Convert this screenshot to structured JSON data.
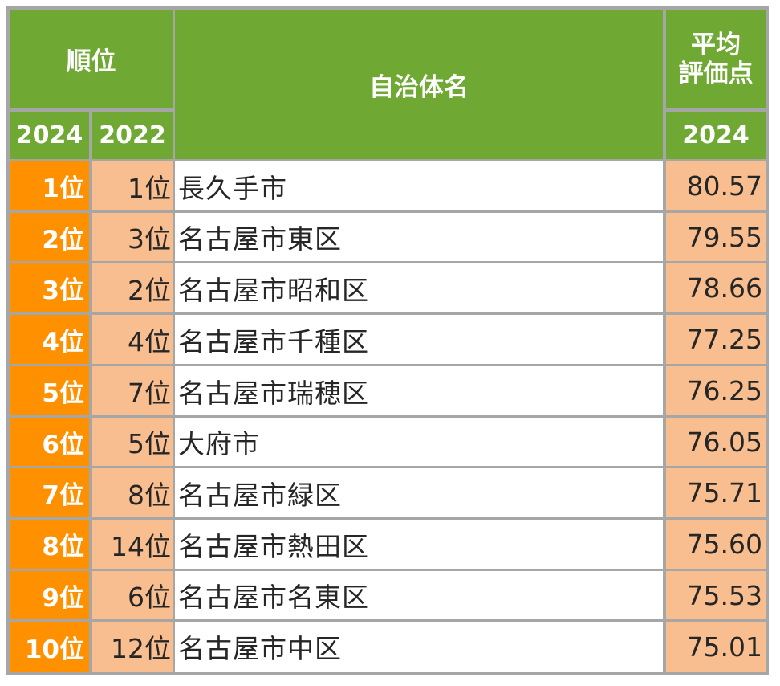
{
  "header": {
    "rank": "順位",
    "year_2024": "2024",
    "year_2022": "2022",
    "name": "自治体名",
    "score_line1": "平均",
    "score_line2": "評価点",
    "score_year": "2024"
  },
  "rows": [
    {
      "rank_2024": "1位",
      "rank_2022": "1位",
      "name": "長久手市",
      "score": "80.57"
    },
    {
      "rank_2024": "2位",
      "rank_2022": "3位",
      "name": "名古屋市東区",
      "score": "79.55"
    },
    {
      "rank_2024": "3位",
      "rank_2022": "2位",
      "name": "名古屋市昭和区",
      "score": "78.66"
    },
    {
      "rank_2024": "4位",
      "rank_2022": "4位",
      "name": "名古屋市千種区",
      "score": "77.25"
    },
    {
      "rank_2024": "5位",
      "rank_2022": "7位",
      "name": "名古屋市瑞穂区",
      "score": "76.25"
    },
    {
      "rank_2024": "6位",
      "rank_2022": "5位",
      "name": "大府市",
      "score": "76.05"
    },
    {
      "rank_2024": "7位",
      "rank_2022": "8位",
      "name": "名古屋市緑区",
      "score": "75.71"
    },
    {
      "rank_2024": "8位",
      "rank_2022": "14位",
      "name": "名古屋市熱田区",
      "score": "75.60"
    },
    {
      "rank_2024": "9位",
      "rank_2022": "6位",
      "name": "名古屋市名東区",
      "score": "75.53"
    },
    {
      "rank_2024": "10位",
      "rank_2022": "12位",
      "name": "名古屋市中区",
      "score": "75.01"
    }
  ],
  "colors": {
    "header_green": "#6fa833",
    "rank_orange": "#ff9000",
    "light_orange": "#f8be8f",
    "grid_gray": "#a6a6a6"
  }
}
